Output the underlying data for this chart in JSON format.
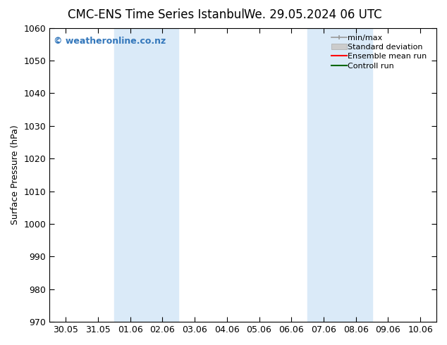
{
  "title_left": "CMC-ENS Time Series Istanbul",
  "title_right": "We. 29.05.2024 06 UTC",
  "ylabel": "Surface Pressure (hPa)",
  "ylim": [
    970,
    1060
  ],
  "yticks": [
    970,
    980,
    990,
    1000,
    1010,
    1020,
    1030,
    1040,
    1050,
    1060
  ],
  "xtick_labels": [
    "30.05",
    "31.05",
    "01.06",
    "02.06",
    "03.06",
    "04.06",
    "05.06",
    "06.06",
    "07.06",
    "08.06",
    "09.06",
    "10.06"
  ],
  "shaded_regions": [
    {
      "xmin": 2,
      "xmax": 4,
      "color": "#daeaf8"
    },
    {
      "xmin": 8,
      "xmax": 10,
      "color": "#daeaf8"
    }
  ],
  "watermark": "© weatheronline.co.nz",
  "watermark_color": "#3377bb",
  "background_color": "#ffffff",
  "title_fontsize": 12,
  "axis_label_fontsize": 9,
  "tick_fontsize": 9,
  "legend_fontsize": 8
}
